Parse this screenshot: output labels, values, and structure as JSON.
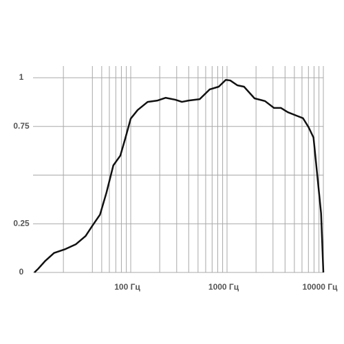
{
  "chart_data": {
    "type": "line",
    "log_x": true,
    "color": "#111111",
    "x": [
      10,
      11,
      13,
      16,
      21,
      27,
      34,
      40,
      48,
      56,
      66,
      78,
      88,
      100,
      118,
      150,
      190,
      230,
      290,
      340,
      400,
      520,
      660,
      820,
      970,
      1080,
      1280,
      1500,
      1930,
      2480,
      3070,
      3620,
      4270,
      5210,
      6150,
      7020,
      7900,
      8580,
      9470,
      10000
    ],
    "values": [
      0,
      0.02,
      0.06,
      0.1,
      0.12,
      0.145,
      0.187,
      0.24,
      0.297,
      0.41,
      0.55,
      0.6,
      0.69,
      0.79,
      0.834,
      0.876,
      0.883,
      0.897,
      0.887,
      0.876,
      0.883,
      0.89,
      0.94,
      0.954,
      0.989,
      0.986,
      0.961,
      0.954,
      0.894,
      0.88,
      0.845,
      0.845,
      0.823,
      0.806,
      0.792,
      0.746,
      0.693,
      0.516,
      0.304,
      0
    ],
    "xlim": [
      10,
      10000
    ],
    "ylim": [
      0,
      1.06
    ],
    "xticks": [
      {
        "value": 100,
        "label": "100 Гц"
      },
      {
        "value": 1000,
        "label": "1000 Гц"
      },
      {
        "value": 10000,
        "label": "10000 Гц"
      }
    ],
    "yticks": [
      0,
      0.25,
      0.75,
      1
    ],
    "xgrid": [
      20,
      40,
      50,
      60,
      70,
      80,
      90,
      100,
      200,
      300,
      400,
      500,
      600,
      700,
      800,
      900,
      1000,
      2000,
      3000,
      4000,
      5000,
      6000,
      7000,
      8000,
      9000,
      10000
    ],
    "ygrid": [
      0,
      0.25,
      0.5,
      0.75,
      1
    ]
  }
}
